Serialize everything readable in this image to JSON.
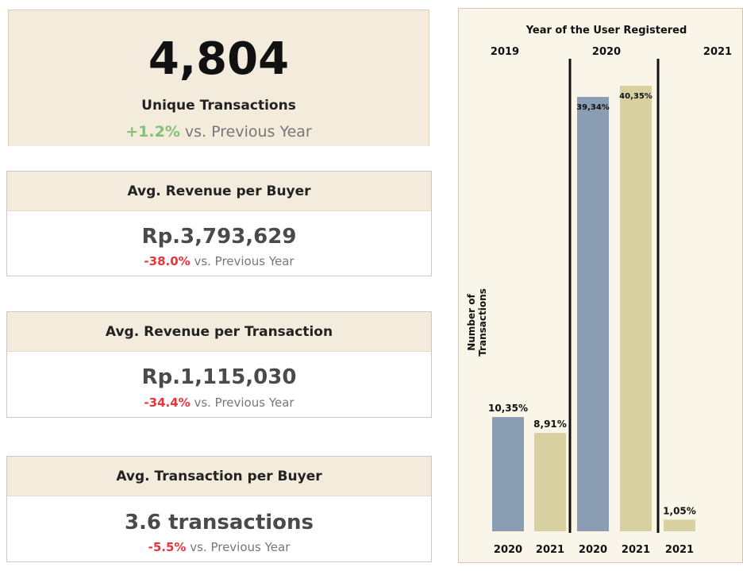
{
  "kpi_main": {
    "value": "4,804",
    "label": "Unique Transactions",
    "delta": "+1.2%",
    "delta_suffix": " vs. Previous Year"
  },
  "cards": [
    {
      "title": "Avg. Revenue per Buyer",
      "value": "Rp.3,793,629",
      "delta": "-38.0%",
      "delta_suffix": " vs. Previous Year"
    },
    {
      "title": "Avg. Revenue per Transaction",
      "value": "Rp.1,115,030",
      "delta": "-34.4%",
      "delta_suffix": " vs. Previous Year"
    },
    {
      "title": "Avg. Transaction per Buyer",
      "value": "3.6 transactions",
      "delta": "-5.5%",
      "delta_suffix": " vs. Previous Year"
    }
  ],
  "colors": {
    "positive": "#84c07a",
    "negative": "#e8343a",
    "header_bg": "#f3ecdc",
    "bar_blue": "#8a9db3",
    "bar_tan": "#d8d0a0",
    "panel_bg": "#f9f5e8"
  },
  "chart_data": {
    "type": "bar",
    "title": "Year of the User Registered",
    "ylabel": "Number of Transactions",
    "xlabel": "",
    "groups": [
      {
        "name": "2019",
        "bars": [
          {
            "category": "2020",
            "value": 10.35,
            "label": "10,35%",
            "color": "blue"
          },
          {
            "category": "2021",
            "value": 8.91,
            "label": "8,91%",
            "color": "tan"
          }
        ]
      },
      {
        "name": "2020",
        "bars": [
          {
            "category": "2020",
            "value": 39.34,
            "label": "39,34%",
            "color": "blue"
          },
          {
            "category": "2021",
            "value": 40.35,
            "label": "40,35%",
            "color": "tan"
          }
        ]
      },
      {
        "name": "2021",
        "bars": [
          {
            "category": "2021",
            "value": 1.05,
            "label": "1,05%",
            "color": "tan"
          }
        ]
      }
    ],
    "ylim": [
      0,
      40.35
    ],
    "grid": false,
    "legend": "none"
  }
}
